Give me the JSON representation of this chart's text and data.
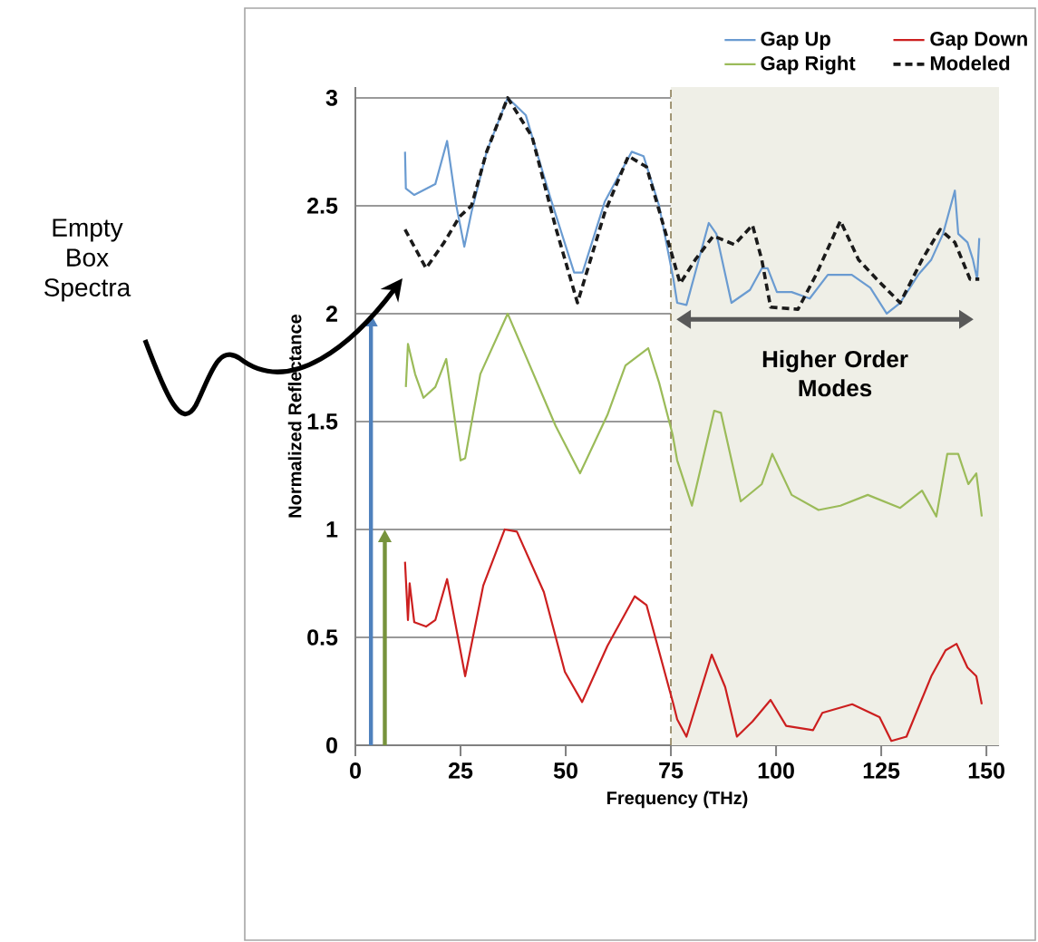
{
  "chart_data": {
    "type": "line",
    "xlabel": "Frequency (THz)",
    "ylabel": "Normalized Reflectance",
    "annotations": [
      "Empty Box Spectra"
    ],
    "xlim": [
      0,
      153
    ],
    "ylim": [
      0,
      3.05
    ],
    "xticks": [
      0,
      25,
      50,
      75,
      100,
      125,
      150
    ],
    "yticks": [
      0,
      0.5,
      1,
      1.5,
      2,
      2.5,
      3
    ],
    "grid": "y",
    "legend": "top right",
    "bands": [
      {
        "axis": "x",
        "from": 75,
        "to": 153,
        "label": "Higher Order Modes",
        "color": "#efefe7"
      }
    ],
    "ref_lines": [
      {
        "axis": "x",
        "value": 75,
        "color": "#8b7d55",
        "line_style": "dashed"
      }
    ],
    "series": [
      {
        "name": "Gap Up",
        "color": "#6a9bd1",
        "x": [
          11.8,
          12,
          14,
          19,
          21.8,
          24,
          25.9,
          27.6,
          31.2,
          36.2,
          40.5,
          46.3,
          52,
          54,
          59.3,
          65.7,
          68.5,
          72.2,
          75.6,
          76.5,
          78.7,
          84,
          85.8,
          89.4,
          93.8,
          96.6,
          98,
          100.2,
          103.7,
          108,
          112.3,
          118,
          122.4,
          126.3,
          129.5,
          133.8,
          136.9,
          139.7,
          142.5,
          143.3,
          145.5,
          146.8,
          147.8,
          148.3
        ],
        "values": [
          2.75,
          2.58,
          2.55,
          2.6,
          2.8,
          2.5,
          2.31,
          2.47,
          2.75,
          3.0,
          2.92,
          2.54,
          2.19,
          2.19,
          2.52,
          2.75,
          2.73,
          2.5,
          2.16,
          2.05,
          2.04,
          2.42,
          2.37,
          2.05,
          2.11,
          2.21,
          2.21,
          2.1,
          2.1,
          2.07,
          2.18,
          2.18,
          2.12,
          2.0,
          2.05,
          2.18,
          2.25,
          2.37,
          2.57,
          2.37,
          2.33,
          2.25,
          2.16,
          2.35
        ]
      },
      {
        "name": "Gap Down",
        "color": "#cc1f1f",
        "x": [
          11.8,
          12.5,
          12.9,
          14,
          16.8,
          19,
          21.8,
          26.1,
          30.4,
          35.5,
          38.4,
          44.8,
          49.8,
          53.9,
          59.9,
          66.4,
          69.2,
          75.6,
          76.5,
          78.7,
          84.7,
          87.9,
          90.7,
          94.4,
          98.7,
          102.4,
          108.8,
          111,
          118.1,
          124.6,
          127.4,
          131,
          136.9,
          140.3,
          142.9,
          145.5,
          147.6,
          148.9
        ],
        "values": [
          0.85,
          0.58,
          0.75,
          0.57,
          0.55,
          0.58,
          0.77,
          0.32,
          0.74,
          1.0,
          0.99,
          0.71,
          0.34,
          0.2,
          0.46,
          0.69,
          0.65,
          0.19,
          0.12,
          0.04,
          0.42,
          0.27,
          0.04,
          0.11,
          0.21,
          0.09,
          0.07,
          0.15,
          0.19,
          0.13,
          0.02,
          0.04,
          0.32,
          0.44,
          0.47,
          0.36,
          0.32,
          0.19
        ]
      },
      {
        "name": "Gap Right",
        "color": "#9bbb59",
        "x": [
          12,
          12.5,
          14.2,
          16.2,
          19,
          21.6,
          25,
          26.1,
          29.7,
          36.2,
          47.6,
          53.4,
          59.9,
          64.2,
          69.6,
          72.2,
          75.4,
          76.5,
          80,
          85.3,
          86.9,
          91.6,
          96.6,
          99.1,
          103.7,
          110.1,
          115.3,
          121.8,
          129.5,
          134.7,
          138.1,
          140.7,
          143.3,
          145.7,
          147.6,
          148.9
        ],
        "values": [
          1.66,
          1.86,
          1.72,
          1.61,
          1.66,
          1.79,
          1.32,
          1.33,
          1.72,
          2.0,
          1.48,
          1.26,
          1.53,
          1.76,
          1.84,
          1.68,
          1.44,
          1.32,
          1.11,
          1.55,
          1.54,
          1.13,
          1.21,
          1.35,
          1.16,
          1.09,
          1.11,
          1.16,
          1.1,
          1.18,
          1.06,
          1.35,
          1.35,
          1.21,
          1.26,
          1.06
        ]
      },
      {
        "name": "Modeled",
        "color": "#1a1a1a",
        "line_style": "dashed",
        "x": [
          11.8,
          16.8,
          21.1,
          24.8,
          27.6,
          31.2,
          36.2,
          42,
          47.6,
          52.8,
          59.3,
          64.9,
          69.2,
          75,
          77.2,
          80.8,
          85.1,
          90.1,
          94.4,
          96.6,
          98.7,
          105.2,
          109.5,
          115.3,
          119.6,
          123.9,
          129.5,
          134.7,
          139,
          142.5,
          146.1,
          148.3
        ],
        "values": [
          2.39,
          2.21,
          2.33,
          2.45,
          2.5,
          2.75,
          3.0,
          2.82,
          2.4,
          2.05,
          2.47,
          2.73,
          2.68,
          2.29,
          2.14,
          2.25,
          2.36,
          2.32,
          2.41,
          2.25,
          2.03,
          2.02,
          2.18,
          2.43,
          2.25,
          2.16,
          2.05,
          2.25,
          2.39,
          2.33,
          2.16,
          2.16
        ]
      }
    ]
  }
}
